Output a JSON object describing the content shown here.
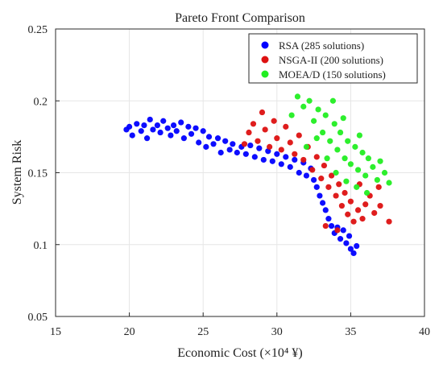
{
  "chart_data": {
    "type": "scatter",
    "title": "Pareto Front Comparison",
    "xlabel": "Economic Cost (×10⁴ ¥)",
    "ylabel": "System Risk",
    "xlim": [
      15,
      40
    ],
    "ylim": [
      0.05,
      0.25
    ],
    "xticks": [
      15,
      20,
      25,
      30,
      35,
      40
    ],
    "xtick_labels": [
      "15",
      "20",
      "25",
      "30",
      "35",
      "40"
    ],
    "yticks": [
      0.05,
      0.1,
      0.15,
      0.2,
      0.25
    ],
    "ytick_labels": [
      "0.05",
      "0.1",
      "0.15",
      "0.2",
      "0.25"
    ],
    "grid": true,
    "legend_position": "top-right",
    "series": [
      {
        "name": "RSA (285 solutions)",
        "color": "#0000ff",
        "count": 285,
        "points": [
          [
            19.8,
            0.18
          ],
          [
            20.0,
            0.182
          ],
          [
            20.2,
            0.176
          ],
          [
            20.5,
            0.184
          ],
          [
            20.8,
            0.179
          ],
          [
            21.0,
            0.183
          ],
          [
            21.2,
            0.174
          ],
          [
            21.4,
            0.187
          ],
          [
            21.6,
            0.18
          ],
          [
            21.9,
            0.183
          ],
          [
            22.1,
            0.178
          ],
          [
            22.3,
            0.186
          ],
          [
            22.6,
            0.181
          ],
          [
            22.8,
            0.176
          ],
          [
            23.0,
            0.183
          ],
          [
            23.2,
            0.179
          ],
          [
            23.5,
            0.185
          ],
          [
            23.7,
            0.174
          ],
          [
            24.0,
            0.182
          ],
          [
            24.2,
            0.177
          ],
          [
            24.5,
            0.181
          ],
          [
            24.7,
            0.171
          ],
          [
            25.0,
            0.179
          ],
          [
            25.2,
            0.168
          ],
          [
            25.4,
            0.175
          ],
          [
            25.7,
            0.17
          ],
          [
            26.0,
            0.174
          ],
          [
            26.2,
            0.164
          ],
          [
            26.5,
            0.172
          ],
          [
            26.8,
            0.166
          ],
          [
            27.0,
            0.17
          ],
          [
            27.3,
            0.164
          ],
          [
            27.6,
            0.168
          ],
          [
            27.9,
            0.163
          ],
          [
            28.2,
            0.169
          ],
          [
            28.5,
            0.161
          ],
          [
            28.8,
            0.167
          ],
          [
            29.1,
            0.159
          ],
          [
            29.4,
            0.165
          ],
          [
            29.7,
            0.158
          ],
          [
            30.0,
            0.163
          ],
          [
            30.3,
            0.156
          ],
          [
            30.6,
            0.161
          ],
          [
            30.9,
            0.154
          ],
          [
            31.2,
            0.159
          ],
          [
            31.5,
            0.15
          ],
          [
            31.8,
            0.157
          ],
          [
            32.0,
            0.148
          ],
          [
            32.3,
            0.153
          ],
          [
            32.5,
            0.145
          ],
          [
            32.7,
            0.14
          ],
          [
            32.9,
            0.134
          ],
          [
            33.1,
            0.129
          ],
          [
            33.3,
            0.124
          ],
          [
            33.5,
            0.118
          ],
          [
            33.7,
            0.113
          ],
          [
            33.9,
            0.108
          ],
          [
            34.1,
            0.112
          ],
          [
            34.3,
            0.104
          ],
          [
            34.5,
            0.11
          ],
          [
            34.7,
            0.101
          ],
          [
            34.9,
            0.106
          ],
          [
            35.0,
            0.097
          ],
          [
            35.2,
            0.094
          ],
          [
            35.4,
            0.099
          ]
        ]
      },
      {
        "name": "NSGA-II (200 solutions)",
        "color": "#dd1111",
        "count": 200,
        "points": [
          [
            27.8,
            0.17
          ],
          [
            28.1,
            0.178
          ],
          [
            28.4,
            0.184
          ],
          [
            28.7,
            0.172
          ],
          [
            29.0,
            0.192
          ],
          [
            29.2,
            0.18
          ],
          [
            29.5,
            0.168
          ],
          [
            29.8,
            0.186
          ],
          [
            30.0,
            0.174
          ],
          [
            30.3,
            0.166
          ],
          [
            30.6,
            0.182
          ],
          [
            30.9,
            0.171
          ],
          [
            31.2,
            0.163
          ],
          [
            31.5,
            0.176
          ],
          [
            31.8,
            0.159
          ],
          [
            32.1,
            0.168
          ],
          [
            32.4,
            0.152
          ],
          [
            32.7,
            0.161
          ],
          [
            33.0,
            0.146
          ],
          [
            33.2,
            0.155
          ],
          [
            33.5,
            0.14
          ],
          [
            33.7,
            0.148
          ],
          [
            34.0,
            0.134
          ],
          [
            34.2,
            0.142
          ],
          [
            34.4,
            0.127
          ],
          [
            34.6,
            0.136
          ],
          [
            34.8,
            0.121
          ],
          [
            35.0,
            0.13
          ],
          [
            35.2,
            0.116
          ],
          [
            35.5,
            0.124
          ],
          [
            35.8,
            0.118
          ],
          [
            36.0,
            0.128
          ],
          [
            36.3,
            0.134
          ],
          [
            36.6,
            0.122
          ],
          [
            37.0,
            0.127
          ],
          [
            37.6,
            0.116
          ],
          [
            33.3,
            0.113
          ],
          [
            34.1,
            0.11
          ],
          [
            35.6,
            0.142
          ],
          [
            36.9,
            0.14
          ]
        ]
      },
      {
        "name": "MOEA/D (150 solutions)",
        "color": "#22ee22",
        "count": 150,
        "points": [
          [
            31.0,
            0.19
          ],
          [
            31.4,
            0.203
          ],
          [
            31.8,
            0.196
          ],
          [
            32.2,
            0.2
          ],
          [
            32.5,
            0.186
          ],
          [
            32.8,
            0.194
          ],
          [
            33.1,
            0.178
          ],
          [
            33.3,
            0.19
          ],
          [
            33.6,
            0.172
          ],
          [
            33.9,
            0.184
          ],
          [
            34.1,
            0.166
          ],
          [
            34.3,
            0.178
          ],
          [
            34.6,
            0.16
          ],
          [
            34.8,
            0.172
          ],
          [
            35.0,
            0.156
          ],
          [
            35.3,
            0.168
          ],
          [
            35.5,
            0.152
          ],
          [
            35.8,
            0.164
          ],
          [
            36.0,
            0.148
          ],
          [
            36.2,
            0.16
          ],
          [
            36.5,
            0.154
          ],
          [
            36.8,
            0.145
          ],
          [
            37.0,
            0.158
          ],
          [
            37.3,
            0.15
          ],
          [
            37.6,
            0.143
          ],
          [
            32.0,
            0.168
          ],
          [
            32.7,
            0.174
          ],
          [
            33.4,
            0.16
          ],
          [
            34.0,
            0.15
          ],
          [
            34.7,
            0.144
          ],
          [
            35.4,
            0.14
          ],
          [
            36.1,
            0.136
          ],
          [
            33.8,
            0.2
          ],
          [
            34.5,
            0.188
          ],
          [
            35.6,
            0.176
          ]
        ]
      }
    ]
  }
}
